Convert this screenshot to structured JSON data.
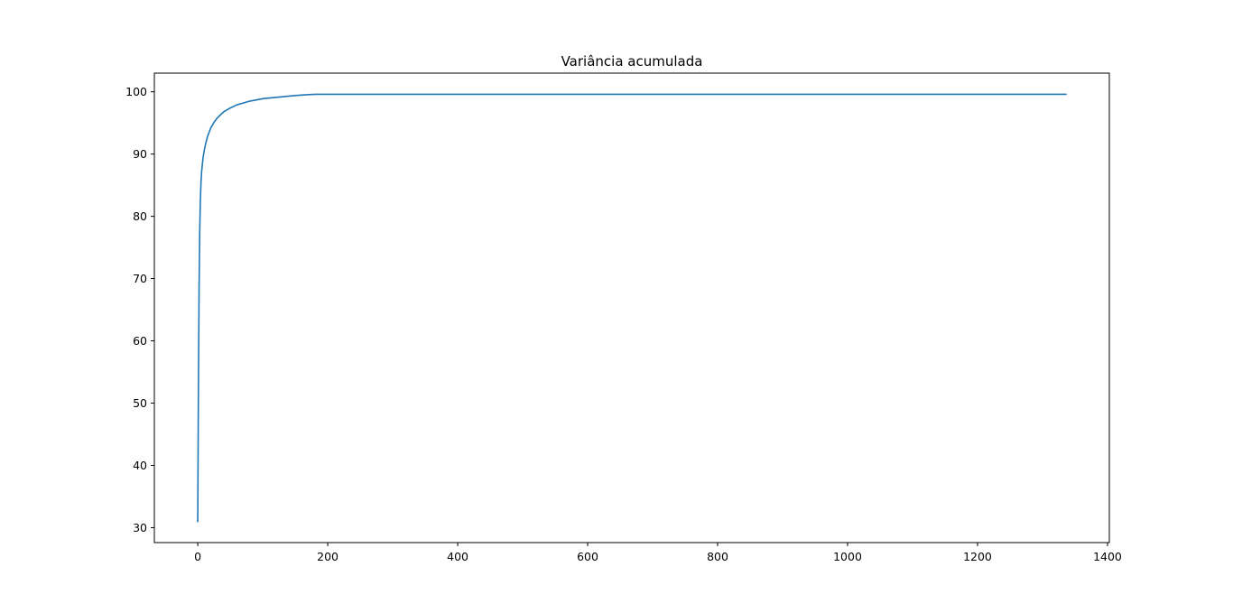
{
  "chart_data": {
    "type": "line",
    "title": "Variância acumulada",
    "xlabel": "",
    "ylabel": "",
    "xlim": [
      -66.8,
      1402.8
    ],
    "ylim": [
      27.6,
      103.0
    ],
    "x_ticks": [
      0,
      200,
      400,
      600,
      800,
      1000,
      1200,
      1400
    ],
    "y_ticks": [
      30,
      40,
      50,
      60,
      70,
      80,
      90,
      100
    ],
    "grid": false,
    "legend": "none",
    "series": [
      {
        "color": "#1f77b4",
        "x": [
          0,
          1,
          2,
          3,
          4,
          5,
          6,
          8,
          10,
          12,
          15,
          20,
          25,
          30,
          40,
          50,
          60,
          70,
          80,
          90,
          100,
          110,
          130,
          150,
          170,
          182,
          200,
          400,
          600,
          800,
          1000,
          1200,
          1336
        ],
        "y": [
          31.0,
          52.0,
          68.0,
          77.5,
          82.5,
          85.5,
          87.2,
          89.3,
          90.6,
          91.6,
          92.8,
          94.2,
          95.1,
          95.8,
          96.8,
          97.4,
          97.9,
          98.2,
          98.5,
          98.7,
          98.9,
          99.0,
          99.2,
          99.4,
          99.55,
          99.6,
          99.6,
          99.6,
          99.6,
          99.6,
          99.6,
          99.6,
          99.6
        ]
      }
    ]
  }
}
